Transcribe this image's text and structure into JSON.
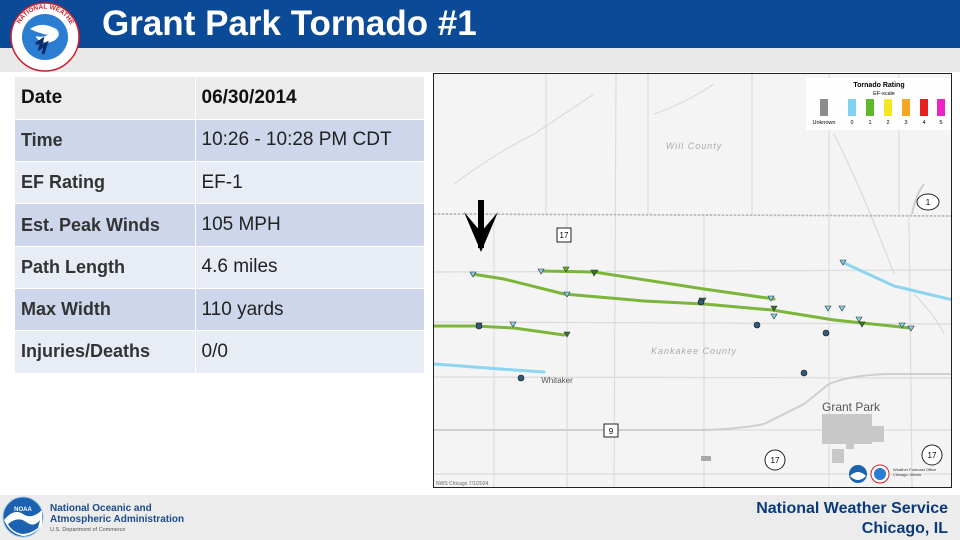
{
  "header": {
    "title": "Grant Park Tornado #1",
    "logo_text": "NATIONAL WEATHER SERVICE"
  },
  "table": {
    "rows": [
      {
        "label": "Date",
        "value": "06/30/2014"
      },
      {
        "label": "Time",
        "value": "10:26 - 10:28 PM CDT"
      },
      {
        "label": "EF Rating",
        "value": "EF-1"
      },
      {
        "label": "Est. Peak Winds",
        "value": "105 MPH"
      },
      {
        "label": "Path Length",
        "value": "4.6 miles"
      },
      {
        "label": "Max Width",
        "value": "110 yards"
      },
      {
        "label": "Injuries/Deaths",
        "value": "0/0"
      }
    ]
  },
  "map": {
    "legend": {
      "title": "Tornado Rating",
      "subtitle": "EF-scale",
      "unknown_label": "Unknown",
      "levels": [
        "0",
        "1",
        "2",
        "3",
        "4",
        "5"
      ],
      "colors": [
        "#8c8c8c",
        "#7fd3f0",
        "#5fb82a",
        "#f2ea1f",
        "#f5a623",
        "#e8211f",
        "#ec21c8"
      ]
    },
    "county_north": "Will County",
    "county_south": "Kankakee County",
    "town_whitaker": "Whitaker",
    "town_grant_park": "Grant Park",
    "route_17_a": "17",
    "route_17_b": "17",
    "route_17_c": "17",
    "route_1": "1",
    "route_9": "9",
    "credit": "NWS Chicago  7/1/2024",
    "wfo_label": "Weather Forecast Office\nChicago, Illinois"
  },
  "footer": {
    "noaa_name": "National Oceanic and\nAtmospheric Administration",
    "noaa_dept": "U.S. Department of Commerce",
    "nws_line1": "National Weather Service",
    "nws_line2": "Chicago, IL"
  }
}
